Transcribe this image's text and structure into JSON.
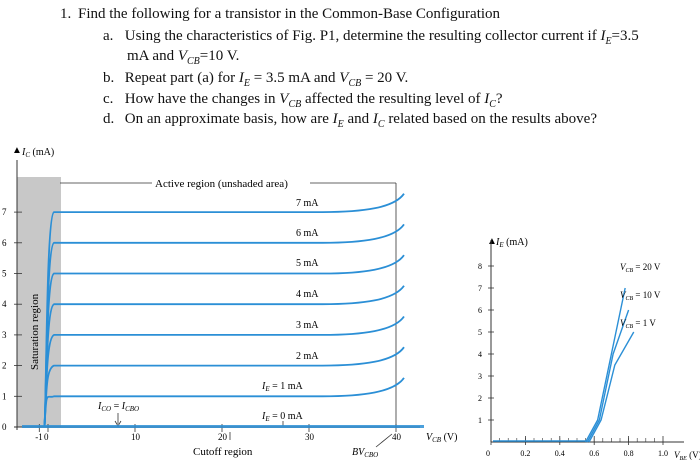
{
  "question": {
    "number": "1.",
    "title": "Find the following for a transistor in the Common-Base Configuration",
    "items": [
      {
        "label": "a.",
        "line1": "Using the characteristics of Fig. P1, determine the resulting collector current if I_E=3.5",
        "line2": "mA and V_CB=10 V."
      },
      {
        "label": "b.",
        "line1": "Repeat part (a) for I_E = 3.5 mA and V_CB = 20 V."
      },
      {
        "label": "c.",
        "line1": "How have the changes in V_CB affected the resulting level of I_C?"
      },
      {
        "label": "d.",
        "line1": "On an approximate basis, how are I_E and I_C related based on the results above?"
      }
    ]
  },
  "output_chart": {
    "y_axis_label": "I_C (mA)",
    "x_axis_label": "V_CB (V)",
    "y_ticks": [
      "0",
      "1",
      "2",
      "3",
      "4",
      "5",
      "6",
      "7"
    ],
    "x_ticks": [
      "-1",
      "0",
      "10",
      "20",
      "30",
      "40"
    ],
    "curve_labels": [
      "7 mA",
      "6 mA",
      "5 mA",
      "4 mA",
      "3 mA",
      "2 mA",
      "I_E = 1 mA",
      "I_E = 0 mA"
    ],
    "saturation_label": "Saturation region",
    "active_label": "Active region (unshaded area)",
    "cutoff_label": "Cutoff region",
    "ico_label": "I_CO = I_CBO",
    "bv_label": "BV_CBO",
    "colors": {
      "curve": "#2b8fd6",
      "saturation": "#c8c8c8"
    }
  },
  "input_chart": {
    "y_axis_label": "I_E (mA)",
    "x_axis_label": "V_BE (V)",
    "y_ticks": [
      "1",
      "2",
      "3",
      "4",
      "5",
      "6",
      "7",
      "8"
    ],
    "x_ticks": [
      "0",
      "0.2",
      "0.4",
      "0.6",
      "0.8",
      "1.0"
    ],
    "curve_labels": [
      "V_CB = 20 V",
      "V_CB = 10 V",
      "V_CB = 1 V"
    ]
  },
  "chart_data": [
    {
      "type": "line",
      "title": "",
      "xlabel": "V_CB (V)",
      "ylabel": "I_C (mA)",
      "xlim": [
        -1,
        42
      ],
      "ylim": [
        0,
        8
      ],
      "series": [
        {
          "name": "I_E = 0 mA",
          "x": [
            0,
            40
          ],
          "y": [
            0,
            0
          ]
        },
        {
          "name": "I_E = 1 mA",
          "x": [
            -0.4,
            0,
            2,
            35,
            40
          ],
          "y": [
            0,
            1,
            1,
            1,
            1.6
          ]
        },
        {
          "name": "2 mA",
          "x": [
            -0.4,
            0,
            2,
            35,
            40
          ],
          "y": [
            0,
            2,
            2,
            2,
            2.6
          ]
        },
        {
          "name": "3 mA",
          "x": [
            -0.4,
            0,
            2,
            35,
            40
          ],
          "y": [
            0,
            3,
            3,
            3,
            3.6
          ]
        },
        {
          "name": "4 mA",
          "x": [
            -0.4,
            0,
            2,
            35,
            40
          ],
          "y": [
            0,
            4,
            4,
            4,
            4.6
          ]
        },
        {
          "name": "5 mA",
          "x": [
            -0.4,
            0,
            2,
            35,
            40
          ],
          "y": [
            0,
            5,
            5,
            5,
            5.6
          ]
        },
        {
          "name": "6 mA",
          "x": [
            -0.4,
            0,
            2,
            35,
            40
          ],
          "y": [
            0,
            6,
            6,
            6,
            6.6
          ]
        },
        {
          "name": "7 mA",
          "x": [
            -0.4,
            0,
            2,
            35,
            40
          ],
          "y": [
            0,
            7,
            7,
            7,
            7.6
          ]
        }
      ]
    },
    {
      "type": "line",
      "title": "",
      "xlabel": "V_BE (V)",
      "ylabel": "I_E (mA)",
      "xlim": [
        0,
        1.0
      ],
      "ylim": [
        0,
        8
      ],
      "series": [
        {
          "name": "V_CB = 20 V",
          "x": [
            0,
            0.55,
            0.62,
            0.7,
            0.78
          ],
          "y": [
            0,
            0,
            1,
            4,
            7
          ]
        },
        {
          "name": "V_CB = 10 V",
          "x": [
            0,
            0.56,
            0.63,
            0.71,
            0.8
          ],
          "y": [
            0,
            0,
            1,
            4,
            6
          ]
        },
        {
          "name": "V_CB = 1 V",
          "x": [
            0,
            0.57,
            0.64,
            0.72,
            0.83
          ],
          "y": [
            0,
            0,
            1,
            3.5,
            5
          ]
        }
      ]
    }
  ]
}
